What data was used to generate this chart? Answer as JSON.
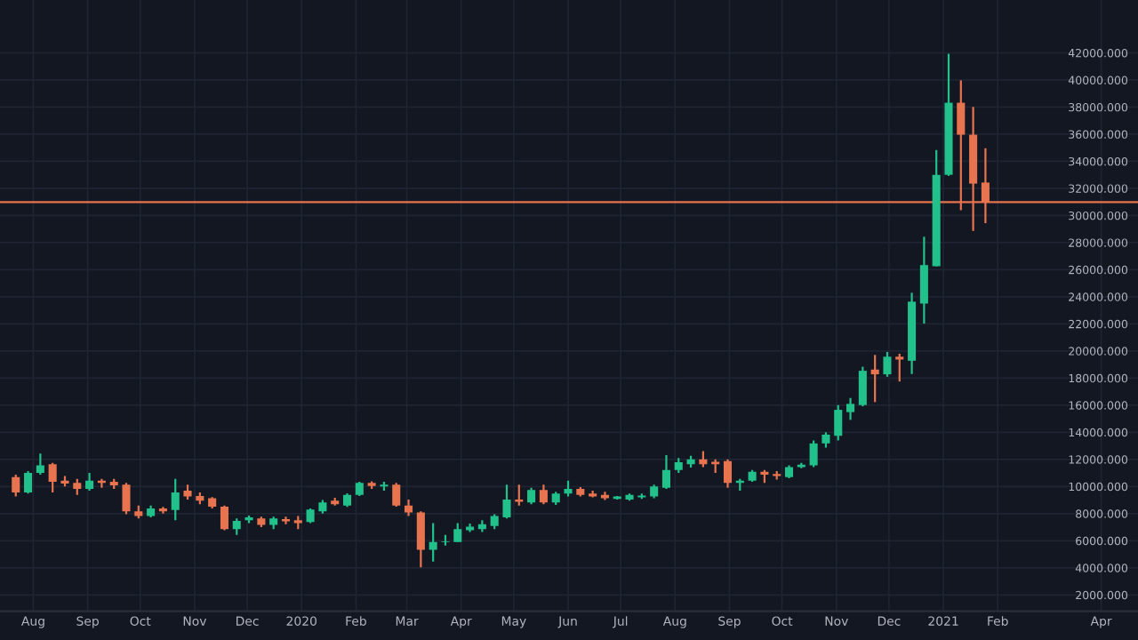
{
  "chart_data": {
    "type": "candlestick",
    "x": [
      "2019-07-22",
      "2019-07-29",
      "2019-08-05",
      "2019-08-12",
      "2019-08-19",
      "2019-08-26",
      "2019-09-02",
      "2019-09-09",
      "2019-09-16",
      "2019-09-23",
      "2019-09-30",
      "2019-10-07",
      "2019-10-14",
      "2019-10-21",
      "2019-10-28",
      "2019-11-04",
      "2019-11-11",
      "2019-11-18",
      "2019-11-25",
      "2019-12-02",
      "2019-12-09",
      "2019-12-16",
      "2019-12-23",
      "2019-12-30",
      "2020-01-06",
      "2020-01-13",
      "2020-01-20",
      "2020-01-27",
      "2020-02-03",
      "2020-02-10",
      "2020-02-17",
      "2020-02-24",
      "2020-03-02",
      "2020-03-09",
      "2020-03-16",
      "2020-03-23",
      "2020-03-30",
      "2020-04-06",
      "2020-04-13",
      "2020-04-20",
      "2020-04-27",
      "2020-05-04",
      "2020-05-11",
      "2020-05-18",
      "2020-05-25",
      "2020-06-01",
      "2020-06-08",
      "2020-06-15",
      "2020-06-22",
      "2020-06-29",
      "2020-07-06",
      "2020-07-13",
      "2020-07-20",
      "2020-07-27",
      "2020-08-03",
      "2020-08-10",
      "2020-08-17",
      "2020-08-24",
      "2020-08-31",
      "2020-09-07",
      "2020-09-14",
      "2020-09-21",
      "2020-09-28",
      "2020-10-05",
      "2020-10-12",
      "2020-10-19",
      "2020-10-26",
      "2020-11-02",
      "2020-11-09",
      "2020-11-16",
      "2020-11-23",
      "2020-11-30",
      "2020-12-07",
      "2020-12-14",
      "2020-12-21",
      "2020-12-28",
      "2021-01-04",
      "2021-01-11",
      "2021-01-18",
      "2021-01-25"
    ],
    "ohlc": [
      [
        10700,
        10870,
        9260,
        9560
      ],
      [
        9560,
        11130,
        9480,
        11000
      ],
      [
        11000,
        12440,
        10870,
        11570
      ],
      [
        11650,
        11740,
        9560,
        10350
      ],
      [
        10440,
        10780,
        10000,
        10220
      ],
      [
        10260,
        10570,
        9390,
        9830
      ],
      [
        9830,
        11000,
        9700,
        10440
      ],
      [
        10440,
        10570,
        9910,
        10260
      ],
      [
        10350,
        10570,
        9830,
        10090
      ],
      [
        10130,
        10260,
        7950,
        8170
      ],
      [
        8170,
        8600,
        7650,
        7820
      ],
      [
        7820,
        8600,
        7730,
        8390
      ],
      [
        8390,
        8500,
        8000,
        8170
      ],
      [
        8260,
        10570,
        7520,
        9560
      ],
      [
        9690,
        10130,
        9040,
        9260
      ],
      [
        9300,
        9560,
        8690,
        8950
      ],
      [
        9130,
        9220,
        8390,
        8520
      ],
      [
        8520,
        8600,
        6770,
        6860
      ],
      [
        6860,
        7650,
        6430,
        7470
      ],
      [
        7520,
        7860,
        7300,
        7730
      ],
      [
        7650,
        7780,
        7000,
        7170
      ],
      [
        7170,
        7780,
        6860,
        7650
      ],
      [
        7600,
        7780,
        7210,
        7430
      ],
      [
        7520,
        7820,
        6860,
        7300
      ],
      [
        7390,
        8390,
        7300,
        8300
      ],
      [
        8170,
        9000,
        8000,
        8820
      ],
      [
        8950,
        9170,
        8600,
        8690
      ],
      [
        8600,
        9500,
        8500,
        9390
      ],
      [
        9390,
        10350,
        9300,
        10260
      ],
      [
        10260,
        10390,
        9830,
        10040
      ],
      [
        10000,
        10350,
        9700,
        10130
      ],
      [
        10130,
        10260,
        8520,
        8600
      ],
      [
        8600,
        9040,
        7820,
        8080
      ],
      [
        8080,
        8170,
        4030,
        5340
      ],
      [
        5340,
        7300,
        4470,
        5900
      ],
      [
        5900,
        6430,
        5650,
        5950
      ],
      [
        5900,
        7300,
        5900,
        6860
      ],
      [
        6770,
        7260,
        6640,
        7040
      ],
      [
        6860,
        7520,
        6640,
        7210
      ],
      [
        7080,
        7950,
        6860,
        7820
      ],
      [
        7730,
        10130,
        7650,
        9040
      ],
      [
        9040,
        10130,
        8600,
        8870
      ],
      [
        8820,
        9910,
        8690,
        9740
      ],
      [
        9740,
        10130,
        8690,
        8820
      ],
      [
        8820,
        9610,
        8650,
        9480
      ],
      [
        9480,
        10440,
        9260,
        9830
      ],
      [
        9830,
        9950,
        9260,
        9390
      ],
      [
        9480,
        9700,
        9200,
        9260
      ],
      [
        9390,
        9610,
        9000,
        9130
      ],
      [
        9080,
        9300,
        9040,
        9260
      ],
      [
        9040,
        9480,
        8950,
        9390
      ],
      [
        9210,
        9480,
        9080,
        9340
      ],
      [
        9260,
        10130,
        9130,
        10000
      ],
      [
        9910,
        12310,
        9830,
        11220
      ],
      [
        11220,
        12100,
        11000,
        11790
      ],
      [
        11650,
        12270,
        11400,
        12000
      ],
      [
        12000,
        12610,
        11440,
        11650
      ],
      [
        11830,
        12000,
        11000,
        11650
      ],
      [
        11870,
        12000,
        9910,
        10260
      ],
      [
        10260,
        10570,
        9700,
        10440
      ],
      [
        10440,
        11220,
        10350,
        11090
      ],
      [
        11090,
        11220,
        10260,
        10870
      ],
      [
        10920,
        11130,
        10520,
        10780
      ],
      [
        10700,
        11570,
        10620,
        11440
      ],
      [
        11440,
        11740,
        11350,
        11610
      ],
      [
        11570,
        13400,
        11440,
        13180
      ],
      [
        13180,
        14000,
        12870,
        13830
      ],
      [
        13740,
        16010,
        13400,
        15660
      ],
      [
        15490,
        16530,
        14920,
        16100
      ],
      [
        16010,
        18840,
        15920,
        18540
      ],
      [
        18630,
        19710,
        16230,
        18280
      ],
      [
        18280,
        19930,
        18100,
        19580
      ],
      [
        19580,
        19800,
        17750,
        19370
      ],
      [
        19280,
        24300,
        18300,
        23640
      ],
      [
        23500,
        28430,
        22020,
        26340
      ],
      [
        26250,
        34830,
        26250,
        32990
      ],
      [
        33000,
        41930,
        32920,
        38320
      ],
      [
        38320,
        39970,
        30390,
        35960
      ],
      [
        35960,
        38010,
        28860,
        32350
      ],
      [
        32430,
        34960,
        29430,
        30990
      ]
    ],
    "colors": [
      "#e8734f",
      "#22c08a",
      "#22c08a",
      "#e8734f",
      "#e8734f",
      "#e8734f",
      "#22c08a",
      "#e8734f",
      "#e8734f",
      "#e8734f",
      "#e8734f",
      "#22c08a",
      "#e8734f",
      "#22c08a",
      "#e8734f",
      "#e8734f",
      "#e8734f",
      "#e8734f",
      "#22c08a",
      "#22c08a",
      "#e8734f",
      "#22c08a",
      "#e8734f",
      "#e8734f",
      "#22c08a",
      "#22c08a",
      "#e8734f",
      "#22c08a",
      "#22c08a",
      "#e8734f",
      "#22c08a",
      "#e8734f",
      "#e8734f",
      "#e8734f",
      "#22c08a",
      "#22c08a",
      "#22c08a",
      "#22c08a",
      "#22c08a",
      "#22c08a",
      "#22c08a",
      "#e8734f",
      "#22c08a",
      "#e8734f",
      "#22c08a",
      "#22c08a",
      "#e8734f",
      "#e8734f",
      "#e8734f",
      "#22c08a",
      "#22c08a",
      "#22c08a",
      "#22c08a",
      "#22c08a",
      "#22c08a",
      "#22c08a",
      "#e8734f",
      "#e8734f",
      "#e8734f",
      "#22c08a",
      "#22c08a",
      "#e8734f",
      "#e8734f",
      "#22c08a",
      "#22c08a",
      "#22c08a",
      "#22c08a",
      "#22c08a",
      "#22c08a",
      "#22c08a",
      "#e8734f",
      "#22c08a",
      "#e8734f",
      "#22c08a",
      "#22c08a",
      "#22c08a",
      "#22c08a",
      "#e8734f",
      "#e8734f",
      "#e8734f"
    ],
    "xlim": [
      "2019-07-13",
      "2021-04-22"
    ],
    "xticks": [
      {
        "value": "2019-08-01",
        "label": "Aug"
      },
      {
        "value": "2019-09-01",
        "label": "Sep"
      },
      {
        "value": "2019-10-01",
        "label": "Oct"
      },
      {
        "value": "2019-11-01",
        "label": "Nov"
      },
      {
        "value": "2019-12-01",
        "label": "Dec"
      },
      {
        "value": "2020-01-01",
        "label": "2020"
      },
      {
        "value": "2020-02-01",
        "label": "Feb"
      },
      {
        "value": "2020-03-01",
        "label": "Mar"
      },
      {
        "value": "2020-04-01",
        "label": "Apr"
      },
      {
        "value": "2020-05-01",
        "label": "May"
      },
      {
        "value": "2020-06-01",
        "label": "Jun"
      },
      {
        "value": "2020-07-01",
        "label": "Jul"
      },
      {
        "value": "2020-08-01",
        "label": "Aug"
      },
      {
        "value": "2020-09-01",
        "label": "Sep"
      },
      {
        "value": "2020-10-01",
        "label": "Oct"
      },
      {
        "value": "2020-11-01",
        "label": "Nov"
      },
      {
        "value": "2020-12-01",
        "label": "Dec"
      },
      {
        "value": "2021-01-01",
        "label": "2021"
      },
      {
        "value": "2021-02-01",
        "label": "Feb"
      },
      {
        "value": "2021-04-01",
        "label": "Apr"
      }
    ],
    "ylim": [
      800,
      45900
    ],
    "yticks": [
      {
        "value": 2000,
        "label": "2000.000"
      },
      {
        "value": 4000,
        "label": "4000.000"
      },
      {
        "value": 6000,
        "label": "6000.000"
      },
      {
        "value": 8000,
        "label": "8000.000"
      },
      {
        "value": 10000,
        "label": "10000.000"
      },
      {
        "value": 12000,
        "label": "12000.000"
      },
      {
        "value": 14000,
        "label": "14000.000"
      },
      {
        "value": 16000,
        "label": "16000.000"
      },
      {
        "value": 18000,
        "label": "18000.000"
      },
      {
        "value": 20000,
        "label": "20000.000"
      },
      {
        "value": 22000,
        "label": "22000.000"
      },
      {
        "value": 24000,
        "label": "24000.000"
      },
      {
        "value": 26000,
        "label": "26000.000"
      },
      {
        "value": 28000,
        "label": "28000.000"
      },
      {
        "value": 30000,
        "label": "30000.000"
      },
      {
        "value": 32000,
        "label": "32000.000"
      },
      {
        "value": 34000,
        "label": "34000.000"
      },
      {
        "value": 36000,
        "label": "36000.000"
      },
      {
        "value": 38000,
        "label": "38000.000"
      },
      {
        "value": 40000,
        "label": "40000.000"
      },
      {
        "value": 42000,
        "label": "42000.000"
      }
    ],
    "ref_lines": [
      {
        "axis": "y",
        "value": 30990,
        "color": "#e8734f"
      }
    ],
    "grid": true
  }
}
